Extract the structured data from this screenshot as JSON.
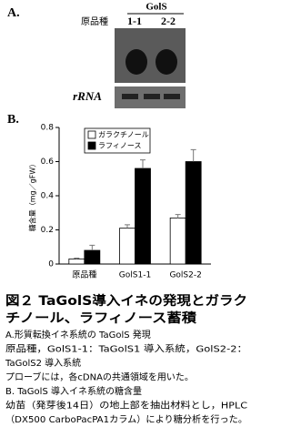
{
  "panel_a": {
    "label": "A.",
    "gene_label": "GolS",
    "lanes": [
      "原品種",
      "1-1",
      "2-2"
    ],
    "rrna_label": "rRNA"
  },
  "panel_b": {
    "label": "B."
  },
  "chart_data": {
    "type": "bar",
    "ylabel": "糖含量（mg／gFW）",
    "categories": [
      "原品種",
      "GolS1-1",
      "GolS2-2"
    ],
    "series": [
      {
        "name": "ガラクチノール",
        "color": "#ffffff",
        "values": [
          0.03,
          0.21,
          0.27
        ],
        "errors": [
          0.005,
          0.02,
          0.02
        ]
      },
      {
        "name": "ラフィノース",
        "color": "#000000",
        "values": [
          0.08,
          0.56,
          0.6
        ],
        "errors": [
          0.03,
          0.05,
          0.07
        ]
      }
    ],
    "ylim": [
      0,
      0.8
    ],
    "yticks": [
      0,
      0.2,
      0.4,
      0.6,
      0.8
    ],
    "legend": "upper left",
    "grid": false
  },
  "caption": {
    "title_lines": [
      "図２ TaGolS導入イネの発現とガラク",
      "チノール、ラフィノース蓄積"
    ],
    "lines": [
      "A.形質転換イネ系統の TaGolS 発現",
      "原品種，GolS1-1：TaGolS1 導入系統，GolS2-2：",
      "TaGolS2 導入系統",
      "プローブには，各cDNAの共通領域を用いた。",
      "B. TaGolS 導入イネ系統の糖含量",
      "幼苗（発芽後14日）の地上部を抽出材料とし，HPLC",
      "（DX500 CarboPacPA1カラム）により糖分析を行った。"
    ]
  }
}
